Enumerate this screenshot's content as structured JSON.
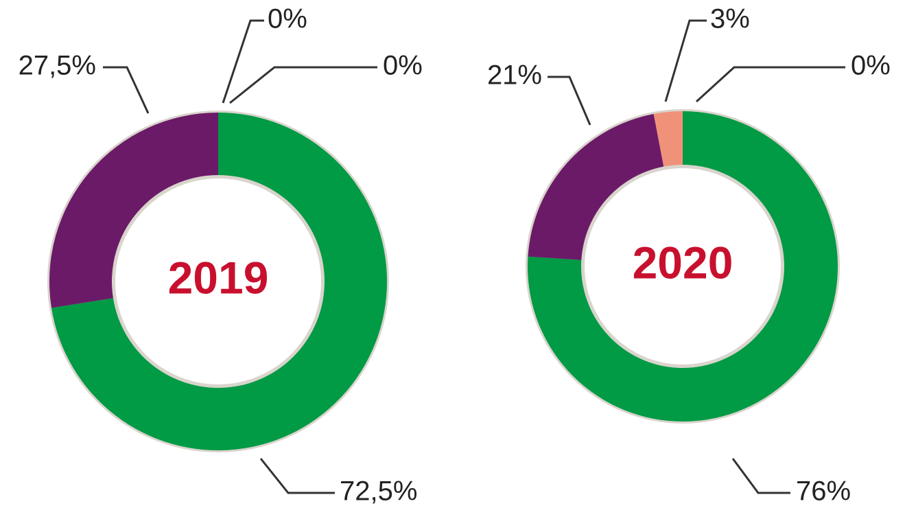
{
  "chart_data": [
    {
      "type": "donut",
      "title": "2019",
      "values": [
        72.5,
        27.5,
        0,
        0
      ],
      "value_labels": [
        "72,5%",
        "27,5%",
        "0%",
        "0%"
      ],
      "colors": [
        "#019a45",
        "#6b1a68",
        "#f0917a",
        "#9a9a9a"
      ]
    },
    {
      "type": "donut",
      "title": "2020",
      "values": [
        76,
        21,
        3,
        0
      ],
      "value_labels": [
        "76%",
        "21%",
        "3%",
        "0%"
      ],
      "colors": [
        "#019a45",
        "#6b1a68",
        "#f0917a",
        "#9a9a9a"
      ]
    }
  ]
}
